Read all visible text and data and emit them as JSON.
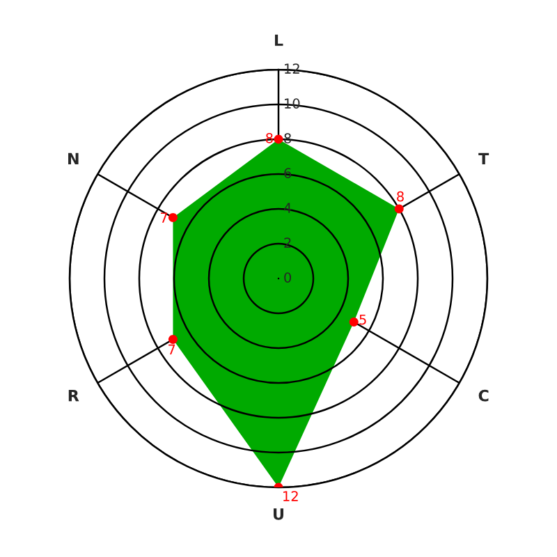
{
  "chart_data": {
    "type": "radar",
    "categories": [
      "L",
      "T",
      "C",
      "U",
      "R",
      "N"
    ],
    "series": [
      {
        "color": "#00aa00",
        "colors": [
          "#ff0000",
          "#ff0000",
          "#ff0000",
          "#ff0000",
          "#ff0000",
          "#ff0000"
        ],
        "values": [
          8,
          8,
          5,
          12,
          7,
          7
        ]
      }
    ],
    "ylim": [
      0,
      12
    ],
    "yticks": [
      0,
      2,
      4,
      6,
      8,
      10,
      12
    ],
    "grid": true,
    "marker": "circle",
    "data_labels": true
  }
}
